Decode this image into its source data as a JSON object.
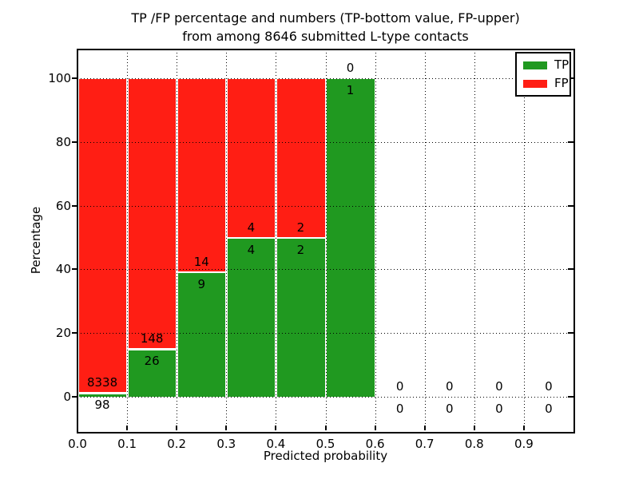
{
  "figure": {
    "title_line1": "TP /FP percentage and numbers (TP-bottom value, FP-upper)",
    "title_line2": "from among 8646 submitted L-type contacts",
    "xlabel": "Predicted probability",
    "ylabel": "Percentage"
  },
  "legend": {
    "position": "upper-right",
    "items": [
      {
        "label": "TP",
        "color": "#209920"
      },
      {
        "label": "FP",
        "color": "#ff1e14"
      }
    ]
  },
  "colors": {
    "tp": "#209920",
    "fp": "#ff1e14",
    "grid": "#000000",
    "bar_edge": "#ffffff",
    "background": "#ffffff",
    "text": "#000000"
  },
  "chart_data": {
    "type": "bar",
    "subtype": "stacked-percentage-histogram",
    "title": "TP /FP percentage and numbers (TP-bottom value, FP-upper) from among 8646 submitted L-type contacts",
    "xlabel": "Predicted probability",
    "ylabel": "Percentage",
    "total_contacts": 8646,
    "xlim": [
      0.0,
      1.0
    ],
    "ylim": [
      -11,
      109
    ],
    "x_tick_labels": [
      "0.0",
      "0.1",
      "0.2",
      "0.3",
      "0.4",
      "0.5",
      "0.6",
      "0.7",
      "0.8",
      "0.9"
    ],
    "y_ticks": [
      0,
      20,
      40,
      60,
      80,
      100
    ],
    "grid": true,
    "legend_position": "upper-right",
    "bin_edges": [
      0.0,
      0.1,
      0.2,
      0.3,
      0.4,
      0.5,
      0.6,
      0.7,
      0.8,
      0.9,
      1.0
    ],
    "categories": [
      "0.0-0.1",
      "0.1-0.2",
      "0.2-0.3",
      "0.3-0.4",
      "0.4-0.5",
      "0.5-0.6",
      "0.6-0.7",
      "0.7-0.8",
      "0.8-0.9",
      "0.9-1.0"
    ],
    "series": [
      {
        "name": "TP",
        "color": "#209920",
        "counts": [
          98,
          26,
          9,
          4,
          2,
          1,
          0,
          0,
          0,
          0
        ],
        "percentages": [
          1.2,
          14.9,
          39.1,
          50.0,
          50.0,
          100.0,
          0,
          0,
          0,
          0
        ]
      },
      {
        "name": "FP",
        "color": "#ff1e14",
        "counts": [
          8338,
          148,
          14,
          4,
          2,
          0,
          0,
          0,
          0,
          0
        ],
        "percentages": [
          98.8,
          85.1,
          60.9,
          50.0,
          50.0,
          0.0,
          0,
          0,
          0,
          0
        ]
      }
    ]
  }
}
